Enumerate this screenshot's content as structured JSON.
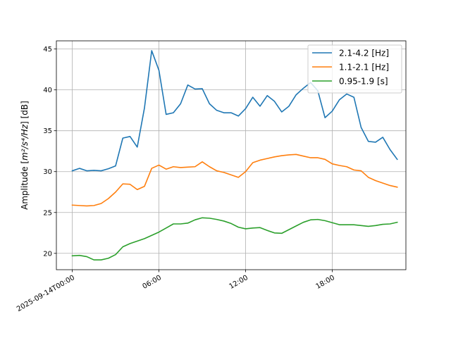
{
  "chart_data": {
    "type": "line",
    "title": "",
    "xlabel": "",
    "ylabel": "Amplitude [m²/s⁴/Hz] [dB]",
    "ylabel_parts": {
      "prefix": "Amplitude [",
      "units": "m²/s⁴/Hz",
      "suffix": "] [dB]"
    },
    "grid": true,
    "legend_position": "top-right",
    "x_axis": {
      "unit": "hours since 2025-09-14T00:00",
      "range": [
        -1.1,
        23.1
      ],
      "ticks": [
        {
          "value": 0,
          "label": "2025-09-14T00:00"
        },
        {
          "value": 6,
          "label": "06:00"
        },
        {
          "value": 12,
          "label": "12:00"
        },
        {
          "value": 18,
          "label": "18:00"
        }
      ]
    },
    "y_axis": {
      "range": [
        18.0,
        46.0
      ],
      "ticks": [
        {
          "value": 20,
          "label": "20"
        },
        {
          "value": 25,
          "label": "25"
        },
        {
          "value": 30,
          "label": "30"
        },
        {
          "value": 35,
          "label": "35"
        },
        {
          "value": 40,
          "label": "40"
        },
        {
          "value": 45,
          "label": "45"
        }
      ]
    },
    "x": [
      0,
      0.5,
      1,
      1.5,
      2,
      2.5,
      3,
      3.5,
      4,
      4.5,
      5,
      5.5,
      6,
      6.5,
      7,
      7.5,
      8,
      8.5,
      9,
      9.5,
      10,
      10.5,
      11,
      11.5,
      12,
      12.5,
      13,
      13.5,
      14,
      14.5,
      15,
      15.5,
      16,
      16.5,
      17,
      17.5,
      18,
      18.5,
      19,
      19.5,
      20,
      20.5,
      21,
      21.5,
      22,
      22.5
    ],
    "series": [
      {
        "name": "2.1-4.2 [Hz]",
        "color": "#1f77b4",
        "values": [
          30.1,
          30.4,
          30.1,
          30.15,
          30.1,
          30.35,
          30.7,
          34.1,
          34.3,
          33.0,
          37.8,
          44.8,
          42.4,
          37.0,
          37.2,
          38.3,
          40.6,
          40.1,
          40.15,
          38.3,
          37.5,
          37.2,
          37.2,
          36.8,
          37.7,
          39.1,
          38.0,
          39.3,
          38.6,
          37.3,
          38.0,
          39.4,
          40.2,
          40.9,
          39.9,
          36.6,
          37.4,
          38.8,
          39.5,
          39.1,
          35.4,
          33.7,
          33.6,
          34.2,
          32.7,
          31.5
        ]
      },
      {
        "name": "1.1-2.1 [Hz]",
        "color": "#ff7f0e",
        "values": [
          25.9,
          25.85,
          25.8,
          25.85,
          26.1,
          26.7,
          27.5,
          28.5,
          28.45,
          27.8,
          28.2,
          30.4,
          30.8,
          30.3,
          30.6,
          30.5,
          30.55,
          30.6,
          31.2,
          30.6,
          30.1,
          29.9,
          29.6,
          29.3,
          30.0,
          31.1,
          31.4,
          31.6,
          31.8,
          31.95,
          32.05,
          32.1,
          31.9,
          31.7,
          31.7,
          31.5,
          30.95,
          30.75,
          30.6,
          30.2,
          30.1,
          29.3,
          28.9,
          28.6,
          28.3,
          28.1
        ]
      },
      {
        "name": "0.95-1.9 [s]",
        "color": "#2ca02c",
        "values": [
          19.7,
          19.75,
          19.6,
          19.2,
          19.2,
          19.4,
          19.85,
          20.8,
          21.2,
          21.5,
          21.8,
          22.2,
          22.6,
          23.1,
          23.6,
          23.6,
          23.7,
          24.1,
          24.35,
          24.3,
          24.15,
          23.95,
          23.65,
          23.2,
          23.0,
          23.1,
          23.15,
          22.8,
          22.5,
          22.45,
          22.9,
          23.35,
          23.8,
          24.1,
          24.15,
          24.0,
          23.75,
          23.5,
          23.5,
          23.5,
          23.4,
          23.3,
          23.4,
          23.55,
          23.6,
          23.8
        ]
      }
    ]
  }
}
